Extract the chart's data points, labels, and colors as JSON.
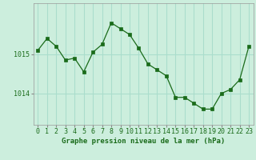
{
  "x": [
    0,
    1,
    2,
    3,
    4,
    5,
    6,
    7,
    8,
    9,
    10,
    11,
    12,
    13,
    14,
    15,
    16,
    17,
    18,
    19,
    20,
    21,
    22,
    23
  ],
  "y": [
    1015.1,
    1015.4,
    1015.2,
    1014.85,
    1014.9,
    1014.55,
    1015.05,
    1015.25,
    1015.8,
    1015.65,
    1015.5,
    1015.15,
    1014.75,
    1014.6,
    1014.45,
    1013.9,
    1013.9,
    1013.75,
    1013.6,
    1013.6,
    1014.0,
    1014.1,
    1014.35,
    1015.2
  ],
  "line_color": "#1a6b1a",
  "marker_color": "#1a6b1a",
  "bg_color": "#cceedd",
  "grid_color": "#aaddcc",
  "axis_label_color": "#1a6b1a",
  "xlabel": "Graphe pression niveau de la mer (hPa)",
  "yticks": [
    1014,
    1015
  ],
  "ylim": [
    1013.2,
    1016.3
  ],
  "xlim": [
    -0.5,
    23.5
  ],
  "label_fontsize": 6.5,
  "tick_fontsize": 6.0
}
